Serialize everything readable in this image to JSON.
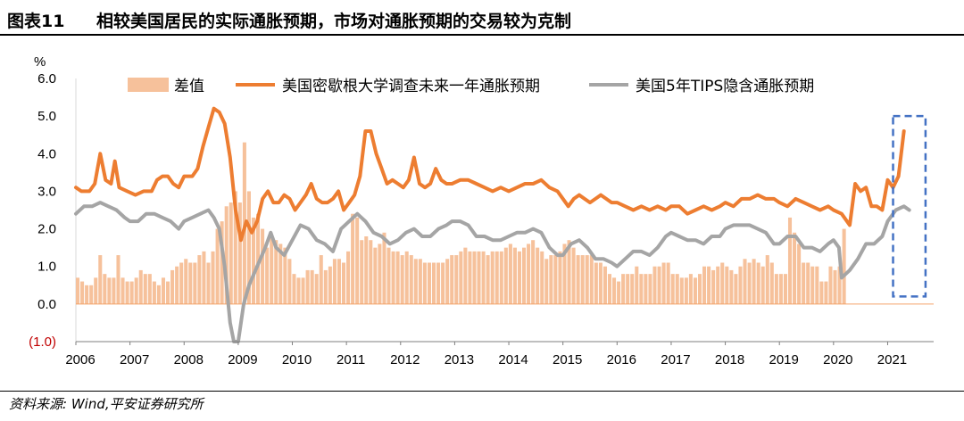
{
  "header": {
    "figure_label": "图表11",
    "title": "相较美国居民的实际通胀预期，市场对通胀预期的交易较为克制"
  },
  "source": "资料来源: Wind,平安证券研究所",
  "colors": {
    "diff": "#f6c19b",
    "survey": "#ed7d31",
    "tips": "#a5a5a5",
    "highlight": "#4472c4"
  },
  "chart_data": {
    "type": "line",
    "unit_label": "%",
    "ylim": [
      -1.0,
      6.0
    ],
    "yticks": [
      "6.0",
      "5.0",
      "4.0",
      "3.0",
      "2.0",
      "1.0",
      "0.0",
      "(1.0)"
    ],
    "ytick_values": [
      6,
      5,
      4,
      3,
      2,
      1,
      0,
      -1
    ],
    "xlim": [
      2006.0,
      2021.85
    ],
    "xticks": [
      "2006",
      "2007",
      "2008",
      "2009",
      "2010",
      "2011",
      "2012",
      "2013",
      "2014",
      "2015",
      "2016",
      "2017",
      "2018",
      "2019",
      "2020",
      "2021"
    ],
    "legend": [
      {
        "name": "差值",
        "kind": "bar",
        "color": "#f6c19b"
      },
      {
        "name": "美国密歇根大学调查未来一年通胀预期",
        "kind": "line",
        "color": "#ed7d31"
      },
      {
        "name": "美国5年TIPS隐含通胀预期",
        "kind": "line",
        "color": "#a5a5a5"
      }
    ],
    "highlight_box": {
      "x_from": 2021.1,
      "x_to": 2021.7,
      "y_from": 0.2,
      "y_to": 5.0
    },
    "series": [
      {
        "name": "美国密歇根大学调查未来一年通胀预期",
        "color": "#ed7d31",
        "points": [
          [
            2006.0,
            3.1
          ],
          [
            2006.1,
            3.0
          ],
          [
            2006.25,
            3.0
          ],
          [
            2006.35,
            3.2
          ],
          [
            2006.45,
            4.0
          ],
          [
            2006.55,
            3.3
          ],
          [
            2006.65,
            3.2
          ],
          [
            2006.72,
            3.8
          ],
          [
            2006.8,
            3.1
          ],
          [
            2006.95,
            3.0
          ],
          [
            2007.1,
            2.9
          ],
          [
            2007.25,
            3.0
          ],
          [
            2007.4,
            3.0
          ],
          [
            2007.5,
            3.3
          ],
          [
            2007.6,
            3.4
          ],
          [
            2007.7,
            3.4
          ],
          [
            2007.8,
            3.2
          ],
          [
            2007.9,
            3.1
          ],
          [
            2008.0,
            3.4
          ],
          [
            2008.15,
            3.4
          ],
          [
            2008.25,
            3.6
          ],
          [
            2008.35,
            4.2
          ],
          [
            2008.45,
            4.7
          ],
          [
            2008.55,
            5.2
          ],
          [
            2008.65,
            5.1
          ],
          [
            2008.75,
            4.8
          ],
          [
            2008.85,
            3.9
          ],
          [
            2008.95,
            2.5
          ],
          [
            2009.05,
            1.7
          ],
          [
            2009.15,
            2.2
          ],
          [
            2009.25,
            1.9
          ],
          [
            2009.35,
            2.2
          ],
          [
            2009.45,
            2.8
          ],
          [
            2009.55,
            3.0
          ],
          [
            2009.65,
            2.7
          ],
          [
            2009.75,
            2.7
          ],
          [
            2009.85,
            2.9
          ],
          [
            2009.95,
            2.8
          ],
          [
            2010.05,
            2.5
          ],
          [
            2010.15,
            2.7
          ],
          [
            2010.25,
            2.9
          ],
          [
            2010.35,
            3.2
          ],
          [
            2010.45,
            2.8
          ],
          [
            2010.55,
            2.7
          ],
          [
            2010.65,
            2.7
          ],
          [
            2010.75,
            2.8
          ],
          [
            2010.85,
            3.0
          ],
          [
            2010.95,
            2.5
          ],
          [
            2011.05,
            2.7
          ],
          [
            2011.15,
            2.9
          ],
          [
            2011.25,
            3.4
          ],
          [
            2011.35,
            4.6
          ],
          [
            2011.45,
            4.6
          ],
          [
            2011.55,
            4.0
          ],
          [
            2011.65,
            3.6
          ],
          [
            2011.75,
            3.2
          ],
          [
            2011.85,
            3.3
          ],
          [
            2011.95,
            3.2
          ],
          [
            2012.05,
            3.1
          ],
          [
            2012.15,
            3.3
          ],
          [
            2012.25,
            3.9
          ],
          [
            2012.35,
            3.2
          ],
          [
            2012.45,
            3.1
          ],
          [
            2012.55,
            3.2
          ],
          [
            2012.65,
            3.6
          ],
          [
            2012.75,
            3.3
          ],
          [
            2012.85,
            3.2
          ],
          [
            2012.95,
            3.2
          ],
          [
            2013.1,
            3.3
          ],
          [
            2013.25,
            3.3
          ],
          [
            2013.4,
            3.2
          ],
          [
            2013.55,
            3.1
          ],
          [
            2013.7,
            3.0
          ],
          [
            2013.85,
            3.1
          ],
          [
            2014.0,
            3.0
          ],
          [
            2014.15,
            3.1
          ],
          [
            2014.3,
            3.2
          ],
          [
            2014.45,
            3.2
          ],
          [
            2014.6,
            3.3
          ],
          [
            2014.75,
            3.1
          ],
          [
            2014.9,
            3.0
          ],
          [
            2015.0,
            2.8
          ],
          [
            2015.1,
            2.6
          ],
          [
            2015.2,
            2.8
          ],
          [
            2015.3,
            2.9
          ],
          [
            2015.4,
            2.8
          ],
          [
            2015.5,
            2.7
          ],
          [
            2015.6,
            2.8
          ],
          [
            2015.7,
            2.9
          ],
          [
            2015.8,
            2.8
          ],
          [
            2015.9,
            2.7
          ],
          [
            2016.0,
            2.7
          ],
          [
            2016.15,
            2.6
          ],
          [
            2016.3,
            2.5
          ],
          [
            2016.45,
            2.6
          ],
          [
            2016.6,
            2.5
          ],
          [
            2016.75,
            2.6
          ],
          [
            2016.9,
            2.5
          ],
          [
            2017.0,
            2.6
          ],
          [
            2017.15,
            2.6
          ],
          [
            2017.3,
            2.4
          ],
          [
            2017.45,
            2.5
          ],
          [
            2017.6,
            2.6
          ],
          [
            2017.75,
            2.5
          ],
          [
            2017.9,
            2.6
          ],
          [
            2018.0,
            2.7
          ],
          [
            2018.15,
            2.6
          ],
          [
            2018.3,
            2.8
          ],
          [
            2018.45,
            2.8
          ],
          [
            2018.6,
            2.9
          ],
          [
            2018.75,
            2.8
          ],
          [
            2018.9,
            2.8
          ],
          [
            2019.0,
            2.7
          ],
          [
            2019.15,
            2.6
          ],
          [
            2019.3,
            2.8
          ],
          [
            2019.45,
            2.7
          ],
          [
            2019.6,
            2.6
          ],
          [
            2019.75,
            2.5
          ],
          [
            2019.9,
            2.6
          ],
          [
            2020.0,
            2.5
          ],
          [
            2020.15,
            2.4
          ],
          [
            2020.3,
            2.1
          ],
          [
            2020.4,
            3.2
          ],
          [
            2020.5,
            3.0
          ],
          [
            2020.6,
            3.1
          ],
          [
            2020.7,
            2.6
          ],
          [
            2020.8,
            2.6
          ],
          [
            2020.9,
            2.5
          ],
          [
            2021.0,
            3.3
          ],
          [
            2021.1,
            3.1
          ],
          [
            2021.2,
            3.4
          ],
          [
            2021.3,
            4.6
          ]
        ]
      },
      {
        "name": "美国5年TIPS隐含通胀预期",
        "color": "#a5a5a5",
        "points": [
          [
            2006.0,
            2.4
          ],
          [
            2006.15,
            2.6
          ],
          [
            2006.3,
            2.6
          ],
          [
            2006.45,
            2.7
          ],
          [
            2006.6,
            2.6
          ],
          [
            2006.75,
            2.5
          ],
          [
            2006.9,
            2.3
          ],
          [
            2007.0,
            2.2
          ],
          [
            2007.15,
            2.2
          ],
          [
            2007.3,
            2.4
          ],
          [
            2007.45,
            2.4
          ],
          [
            2007.6,
            2.3
          ],
          [
            2007.75,
            2.2
          ],
          [
            2007.9,
            2.0
          ],
          [
            2008.0,
            2.2
          ],
          [
            2008.15,
            2.3
          ],
          [
            2008.3,
            2.4
          ],
          [
            2008.45,
            2.5
          ],
          [
            2008.55,
            2.3
          ],
          [
            2008.65,
            2.0
          ],
          [
            2008.75,
            1.0
          ],
          [
            2008.85,
            -0.5
          ],
          [
            2008.92,
            -1.0
          ],
          [
            2009.0,
            -1.0
          ],
          [
            2009.1,
            0.0
          ],
          [
            2009.2,
            0.5
          ],
          [
            2009.35,
            1.0
          ],
          [
            2009.5,
            1.5
          ],
          [
            2009.6,
            1.9
          ],
          [
            2009.7,
            1.5
          ],
          [
            2009.85,
            1.3
          ],
          [
            2010.0,
            1.7
          ],
          [
            2010.15,
            2.1
          ],
          [
            2010.3,
            2.0
          ],
          [
            2010.45,
            1.7
          ],
          [
            2010.6,
            1.6
          ],
          [
            2010.75,
            1.4
          ],
          [
            2010.9,
            2.0
          ],
          [
            2011.05,
            2.2
          ],
          [
            2011.2,
            2.4
          ],
          [
            2011.35,
            2.2
          ],
          [
            2011.5,
            1.9
          ],
          [
            2011.65,
            1.8
          ],
          [
            2011.8,
            1.6
          ],
          [
            2011.95,
            1.7
          ],
          [
            2012.1,
            1.9
          ],
          [
            2012.25,
            2.0
          ],
          [
            2012.4,
            1.8
          ],
          [
            2012.55,
            1.8
          ],
          [
            2012.7,
            2.0
          ],
          [
            2012.85,
            2.1
          ],
          [
            2012.95,
            2.2
          ],
          [
            2013.1,
            2.2
          ],
          [
            2013.25,
            2.1
          ],
          [
            2013.4,
            1.8
          ],
          [
            2013.55,
            1.8
          ],
          [
            2013.7,
            1.7
          ],
          [
            2013.85,
            1.7
          ],
          [
            2014.0,
            1.8
          ],
          [
            2014.15,
            1.9
          ],
          [
            2014.3,
            1.9
          ],
          [
            2014.45,
            2.0
          ],
          [
            2014.6,
            1.9
          ],
          [
            2014.75,
            1.5
          ],
          [
            2014.9,
            1.3
          ],
          [
            2015.0,
            1.3
          ],
          [
            2015.15,
            1.6
          ],
          [
            2015.3,
            1.7
          ],
          [
            2015.45,
            1.5
          ],
          [
            2015.6,
            1.2
          ],
          [
            2015.75,
            1.2
          ],
          [
            2015.9,
            1.1
          ],
          [
            2016.0,
            1.0
          ],
          [
            2016.15,
            1.2
          ],
          [
            2016.3,
            1.4
          ],
          [
            2016.45,
            1.4
          ],
          [
            2016.6,
            1.3
          ],
          [
            2016.75,
            1.5
          ],
          [
            2016.9,
            1.8
          ],
          [
            2017.0,
            1.9
          ],
          [
            2017.15,
            1.8
          ],
          [
            2017.3,
            1.7
          ],
          [
            2017.45,
            1.7
          ],
          [
            2017.6,
            1.6
          ],
          [
            2017.75,
            1.8
          ],
          [
            2017.9,
            1.8
          ],
          [
            2018.0,
            2.0
          ],
          [
            2018.15,
            2.1
          ],
          [
            2018.3,
            2.1
          ],
          [
            2018.45,
            2.1
          ],
          [
            2018.6,
            2.0
          ],
          [
            2018.75,
            1.9
          ],
          [
            2018.9,
            1.6
          ],
          [
            2019.0,
            1.6
          ],
          [
            2019.15,
            1.8
          ],
          [
            2019.3,
            1.8
          ],
          [
            2019.45,
            1.5
          ],
          [
            2019.6,
            1.5
          ],
          [
            2019.75,
            1.4
          ],
          [
            2019.9,
            1.6
          ],
          [
            2020.0,
            1.7
          ],
          [
            2020.1,
            1.5
          ],
          [
            2020.15,
            0.7
          ],
          [
            2020.3,
            0.9
          ],
          [
            2020.45,
            1.2
          ],
          [
            2020.6,
            1.6
          ],
          [
            2020.75,
            1.6
          ],
          [
            2020.9,
            1.8
          ],
          [
            2021.0,
            2.2
          ],
          [
            2021.15,
            2.5
          ],
          [
            2021.3,
            2.6
          ],
          [
            2021.4,
            2.5
          ]
        ]
      }
    ],
    "bars": {
      "name": "差值",
      "color": "#f6c19b",
      "x_start": 2006.0,
      "step": 0.0833,
      "values": [
        0.7,
        0.6,
        0.5,
        0.5,
        0.7,
        1.3,
        0.8,
        0.7,
        0.7,
        1.3,
        0.7,
        0.6,
        0.6,
        0.7,
        0.9,
        0.8,
        0.8,
        0.6,
        0.5,
        0.7,
        0.6,
        0.9,
        1.0,
        1.1,
        1.2,
        1.1,
        1.1,
        1.3,
        1.4,
        1.1,
        1.4,
        2.0,
        2.2,
        2.6,
        2.7,
        3.0,
        2.7,
        4.3,
        3.0,
        2.3,
        2.4,
        2.0,
        1.5,
        1.8,
        1.7,
        1.6,
        1.5,
        1.2,
        0.8,
        0.7,
        0.7,
        0.9,
        0.9,
        0.8,
        1.3,
        0.9,
        1.0,
        1.2,
        1.2,
        1.1,
        1.4,
        2.4,
        2.3,
        1.7,
        1.8,
        1.7,
        1.5,
        1.6,
        1.9,
        1.5,
        1.4,
        1.4,
        1.3,
        1.4,
        1.3,
        1.2,
        1.2,
        1.1,
        1.1,
        1.1,
        1.1,
        1.1,
        1.2,
        1.3,
        1.3,
        1.4,
        1.5,
        1.4,
        1.4,
        1.4,
        1.4,
        1.3,
        1.4,
        1.4,
        1.4,
        1.5,
        1.6,
        1.5,
        1.4,
        1.5,
        1.6,
        1.7,
        1.5,
        1.4,
        1.2,
        1.3,
        1.3,
        1.4,
        1.6,
        1.7,
        1.5,
        1.3,
        1.3,
        1.3,
        1.3,
        1.1,
        1.1,
        1.0,
        0.8,
        0.7,
        0.6,
        0.8,
        0.8,
        0.8,
        1.0,
        0.8,
        0.8,
        0.8,
        1.0,
        1.0,
        1.1,
        1.1,
        0.8,
        0.8,
        0.7,
        0.7,
        0.8,
        0.7,
        0.8,
        1.0,
        1.0,
        0.9,
        1.0,
        1.1,
        1.0,
        0.9,
        0.8,
        1.0,
        1.2,
        1.1,
        1.2,
        1.1,
        1.0,
        1.3,
        1.1,
        0.8,
        0.8,
        0.8,
        2.3,
        1.9,
        1.6,
        1.1,
        1.1,
        1.0,
        1.0,
        0.6,
        0.6,
        1.0,
        0.9,
        1.0,
        2.0
      ]
    }
  }
}
